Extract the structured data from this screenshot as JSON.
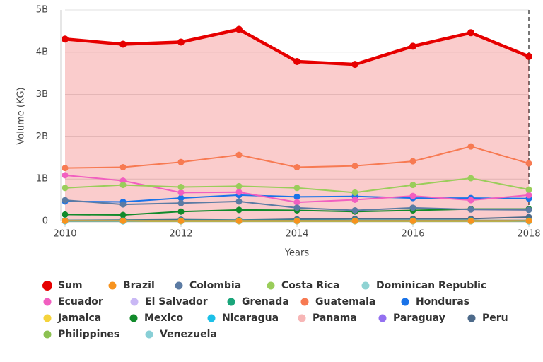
{
  "chart_data": {
    "type": "line",
    "x_label": "Years",
    "y_label": "Volume (KG)",
    "x": [
      2010,
      2011,
      2012,
      2013,
      2014,
      2015,
      2016,
      2017,
      2018
    ],
    "xlim": [
      2010,
      2018
    ],
    "xticks": [
      2010,
      2012,
      2014,
      2016,
      2018
    ],
    "ylim": [
      0,
      5000000000
    ],
    "yticks": [
      0,
      {
        "value": 1000000000,
        "label": "1B"
      },
      {
        "value": 2000000000,
        "label": "2B"
      },
      {
        "value": 3000000000,
        "label": "3B"
      },
      {
        "value": 4000000000,
        "label": "4B"
      },
      {
        "value": 5000000000,
        "label": "5B"
      }
    ],
    "grid": true,
    "series": [
      {
        "name": "Sum",
        "color": "#e60000",
        "values": [
          4310000000,
          4190000000,
          4240000000,
          4540000000,
          3780000000,
          3710000000,
          4140000000,
          4460000000,
          3900000000
        ]
      },
      {
        "name": "Brazil",
        "color": "#f7931e",
        "values": [
          10000000,
          10000000,
          10000000,
          10000000,
          10000000,
          10000000,
          10000000,
          10000000,
          10000000
        ]
      },
      {
        "name": "Colombia",
        "color": "#5b7ba3",
        "values": [
          500000000,
          400000000,
          430000000,
          470000000,
          320000000,
          260000000,
          320000000,
          280000000,
          270000000
        ]
      },
      {
        "name": "Costa Rica",
        "color": "#9acd5a",
        "values": [
          790000000,
          860000000,
          810000000,
          830000000,
          790000000,
          680000000,
          860000000,
          1020000000,
          750000000
        ]
      },
      {
        "name": "Dominican Republic",
        "color": "#8fd3d3",
        "values": [
          10000000,
          10000000,
          10000000,
          10000000,
          10000000,
          10000000,
          10000000,
          10000000,
          10000000
        ]
      },
      {
        "name": "Ecuador",
        "color": "#f15fc0",
        "values": [
          1090000000,
          960000000,
          680000000,
          690000000,
          450000000,
          510000000,
          600000000,
          500000000,
          620000000
        ]
      },
      {
        "name": "El Salvador",
        "color": "#c9b8f5",
        "values": [
          10000000,
          10000000,
          10000000,
          10000000,
          10000000,
          10000000,
          10000000,
          10000000,
          10000000
        ]
      },
      {
        "name": "Grenada",
        "color": "#1aa57a",
        "values": [
          20000000,
          20000000,
          20000000,
          20000000,
          20000000,
          20000000,
          20000000,
          20000000,
          20000000
        ]
      },
      {
        "name": "Guatemala",
        "color": "#f77a52",
        "values": [
          1260000000,
          1280000000,
          1400000000,
          1570000000,
          1280000000,
          1310000000,
          1420000000,
          1770000000,
          1370000000
        ]
      },
      {
        "name": "Honduras",
        "color": "#1a73e8",
        "values": [
          470000000,
          460000000,
          550000000,
          620000000,
          580000000,
          590000000,
          550000000,
          550000000,
          540000000
        ]
      },
      {
        "name": "Jamaica",
        "color": "#f5d33b",
        "values": [
          10000000,
          10000000,
          10000000,
          10000000,
          10000000,
          10000000,
          10000000,
          10000000,
          10000000
        ]
      },
      {
        "name": "Mexico",
        "color": "#118a2b",
        "values": [
          160000000,
          150000000,
          230000000,
          270000000,
          260000000,
          230000000,
          260000000,
          290000000,
          290000000
        ]
      },
      {
        "name": "Nicaragua",
        "color": "#1cc0e8",
        "values": [
          0,
          0,
          20000000,
          20000000,
          20000000,
          20000000,
          20000000,
          20000000,
          0
        ]
      },
      {
        "name": "Panama",
        "color": "#f7b6b6",
        "values": [
          10000000,
          10000000,
          10000000,
          10000000,
          10000000,
          10000000,
          10000000,
          10000000,
          10000000
        ]
      },
      {
        "name": "Paraguay",
        "color": "#9370f0",
        "values": [
          10000000,
          10000000,
          10000000,
          10000000,
          10000000,
          10000000,
          10000000,
          10000000,
          10000000
        ]
      },
      {
        "name": "Peru",
        "color": "#4d6a8a",
        "values": [
          20000000,
          30000000,
          40000000,
          30000000,
          50000000,
          60000000,
          60000000,
          60000000,
          100000000
        ]
      },
      {
        "name": "Philippines",
        "color": "#8cc152",
        "values": [
          0,
          0,
          0,
          0,
          0,
          0,
          0,
          0,
          0
        ]
      },
      {
        "name": "Venezuela",
        "color": "#88cfd6",
        "values": [
          0,
          0,
          0,
          0,
          0,
          0,
          0,
          0,
          0
        ]
      }
    ]
  }
}
